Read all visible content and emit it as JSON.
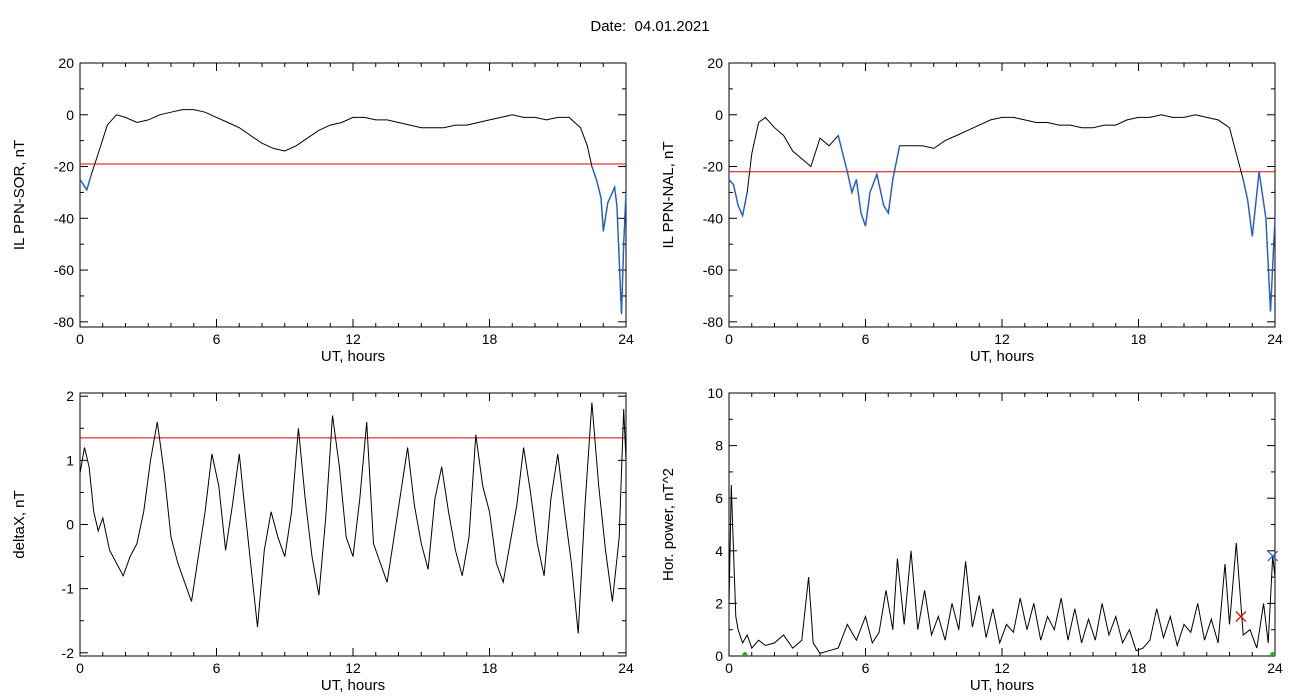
{
  "header": {
    "title": "Date:  04.01.2021"
  },
  "colors": {
    "curve": "#000000",
    "substorm_curve": "#1e5fcc",
    "threshold": "#dd0000"
  },
  "chart_data": [
    {
      "type": "line",
      "xlabel": "UT, hours",
      "ylabel": "IL PPN-SOR, nT",
      "xlim": [
        0,
        24
      ],
      "ylim": [
        -82,
        20
      ],
      "xticks": [
        "0",
        "6",
        "12",
        "18",
        "24"
      ],
      "yticks": [
        "20",
        "0",
        "-20",
        "-40",
        "-60",
        "-80"
      ],
      "threshold": -19,
      "series": [
        {
          "x": [
            0,
            0.3,
            0.5,
            0.8,
            1.2,
            1.6,
            2.0,
            2.5,
            3.0,
            3.5,
            4.0,
            4.5,
            5.0,
            5.5,
            6.0,
            6.5,
            7.0,
            7.5,
            8.0,
            8.5,
            9.0,
            9.5,
            10.0,
            10.5,
            11.0,
            11.5,
            12.0,
            12.5,
            13.0,
            13.5,
            14.0,
            14.5,
            15.0,
            15.5,
            16.0,
            16.5,
            17.0,
            17.5,
            18.0,
            18.5,
            19.0,
            19.5,
            20.0,
            20.5,
            21.0,
            21.5,
            22.0,
            22.3,
            22.5,
            22.7,
            22.9,
            23.0,
            23.2,
            23.4,
            23.5,
            23.6,
            23.8,
            23.9,
            24.0
          ],
          "y": [
            -25,
            -29,
            -23,
            -15,
            -4,
            0,
            -1,
            -3,
            -2,
            0,
            1,
            2,
            2,
            1,
            -1,
            -3,
            -5,
            -8,
            -11,
            -13,
            -14,
            -12,
            -9,
            -6,
            -4,
            -3,
            -1,
            -1,
            -2,
            -2,
            -3,
            -4,
            -5,
            -5,
            -5,
            -4,
            -4,
            -3,
            -2,
            -1,
            0,
            -1,
            -1,
            -2,
            -1,
            -1,
            -5,
            -12,
            -20,
            -25,
            -32,
            -45,
            -34,
            -30,
            -28,
            -35,
            -77,
            -50,
            -30
          ],
          "substorm_ranges": [
            [
              0,
              0.5
            ],
            [
              22.5,
              24
            ]
          ]
        }
      ]
    },
    {
      "type": "line",
      "xlabel": "UT, hours",
      "ylabel": "IL PPN-NAL, nT",
      "xlim": [
        0,
        24
      ],
      "ylim": [
        -82,
        20
      ],
      "xticks": [
        "0",
        "6",
        "12",
        "18",
        "24"
      ],
      "yticks": [
        "20",
        "0",
        "-20",
        "-40",
        "-60",
        "-80"
      ],
      "threshold": -22,
      "series": [
        {
          "x": [
            0,
            0.2,
            0.4,
            0.6,
            0.8,
            1.0,
            1.3,
            1.6,
            2.0,
            2.4,
            2.8,
            3.2,
            3.6,
            4.0,
            4.4,
            4.8,
            5.2,
            5.4,
            5.6,
            5.8,
            6.0,
            6.2,
            6.5,
            6.8,
            7.0,
            7.2,
            7.5,
            8.0,
            8.5,
            9.0,
            9.5,
            10.0,
            10.5,
            11.0,
            11.5,
            12.0,
            12.5,
            13.0,
            13.5,
            14.0,
            14.5,
            15.0,
            15.5,
            16.0,
            16.5,
            17.0,
            17.5,
            18.0,
            18.5,
            19.0,
            19.5,
            20.0,
            20.5,
            21.0,
            21.5,
            22.0,
            22.3,
            22.6,
            22.8,
            23.0,
            23.3,
            23.6,
            23.8,
            24.0
          ],
          "y": [
            -25,
            -27,
            -35,
            -39,
            -30,
            -15,
            -3,
            -1,
            -5,
            -8,
            -14,
            -17,
            -20,
            -9,
            -12,
            -8,
            -22,
            -30,
            -25,
            -38,
            -43,
            -30,
            -23,
            -35,
            -38,
            -25,
            -12,
            -12,
            -12,
            -13,
            -10,
            -8,
            -6,
            -4,
            -2,
            -1,
            -1,
            -2,
            -3,
            -3,
            -4,
            -4,
            -5,
            -5,
            -4,
            -4,
            -2,
            -1,
            -1,
            0,
            -1,
            -1,
            0,
            -1,
            -2,
            -5,
            -15,
            -25,
            -33,
            -47,
            -22,
            -40,
            -76,
            -40
          ],
          "substorm_ranges": [
            [
              0,
              0.9
            ],
            [
              4.5,
              7.6
            ],
            [
              22.4,
              24
            ]
          ]
        }
      ]
    },
    {
      "type": "line",
      "xlabel": "UT, hours",
      "ylabel": "deltaX, nT",
      "xlim": [
        0,
        24
      ],
      "ylim": [
        -2.05,
        2.05
      ],
      "xticks": [
        "0",
        "6",
        "12",
        "18",
        "24"
      ],
      "yticks": [
        "2",
        "1",
        "0",
        "-1",
        "-2"
      ],
      "threshold": 1.35,
      "series": [
        {
          "x": [
            0,
            0.2,
            0.4,
            0.6,
            0.8,
            1.0,
            1.3,
            1.6,
            1.9,
            2.2,
            2.5,
            2.8,
            3.1,
            3.4,
            3.7,
            4.0,
            4.3,
            4.6,
            4.9,
            5.2,
            5.5,
            5.8,
            6.1,
            6.4,
            6.7,
            7.0,
            7.2,
            7.5,
            7.8,
            8.1,
            8.4,
            8.7,
            9.0,
            9.3,
            9.6,
            9.9,
            10.2,
            10.5,
            10.8,
            11.1,
            11.4,
            11.7,
            12.0,
            12.3,
            12.6,
            12.9,
            13.2,
            13.5,
            13.8,
            14.1,
            14.4,
            14.7,
            15.0,
            15.3,
            15.6,
            15.9,
            16.2,
            16.5,
            16.8,
            17.1,
            17.4,
            17.7,
            18.0,
            18.3,
            18.6,
            18.9,
            19.2,
            19.5,
            19.8,
            20.1,
            20.4,
            20.7,
            21.0,
            21.3,
            21.6,
            21.9,
            22.2,
            22.5,
            22.8,
            23.1,
            23.4,
            23.7,
            23.9,
            24.0
          ],
          "y": [
            0.8,
            1.2,
            0.9,
            0.2,
            -0.1,
            0.1,
            -0.4,
            -0.6,
            -0.8,
            -0.5,
            -0.3,
            0.2,
            1.0,
            1.6,
            0.8,
            -0.2,
            -0.6,
            -0.9,
            -1.2,
            -0.5,
            0.2,
            1.1,
            0.6,
            -0.4,
            0.3,
            1.1,
            0.4,
            -0.6,
            -1.6,
            -0.4,
            0.2,
            -0.2,
            -0.5,
            0.2,
            1.5,
            0.4,
            -0.5,
            -1.1,
            0.1,
            1.7,
            0.9,
            -0.2,
            -0.5,
            0.4,
            1.6,
            -0.3,
            -0.6,
            -0.9,
            -0.2,
            0.5,
            1.2,
            0.3,
            -0.3,
            -0.7,
            0.4,
            0.9,
            0.2,
            -0.4,
            -0.8,
            -0.2,
            1.4,
            0.6,
            0.2,
            -0.6,
            -0.9,
            -0.3,
            0.3,
            1.2,
            0.5,
            -0.3,
            -0.8,
            0.4,
            1.1,
            0.2,
            -0.6,
            -1.7,
            0.3,
            1.9,
            0.6,
            -0.4,
            -1.2,
            -0.2,
            1.8,
            1.0
          ],
          "substorm_ranges": []
        }
      ]
    },
    {
      "type": "line",
      "xlabel": "UT, hours",
      "ylabel": "Hor. power, nT^2",
      "xlim": [
        0,
        24
      ],
      "ylim": [
        0,
        10
      ],
      "xticks": [
        "0",
        "6",
        "12",
        "18",
        "24"
      ],
      "yticks": [
        "10",
        "8",
        "6",
        "4",
        "2",
        "0"
      ],
      "threshold": null,
      "series": [
        {
          "x": [
            0,
            0.1,
            0.2,
            0.3,
            0.4,
            0.6,
            0.8,
            1.0,
            1.3,
            1.6,
            2.0,
            2.4,
            2.8,
            3.2,
            3.5,
            3.7,
            4.0,
            4.4,
            4.8,
            5.2,
            5.6,
            6.0,
            6.3,
            6.6,
            6.9,
            7.2,
            7.4,
            7.7,
            8.0,
            8.3,
            8.6,
            8.9,
            9.2,
            9.5,
            9.8,
            10.1,
            10.4,
            10.7,
            11.0,
            11.3,
            11.6,
            11.9,
            12.2,
            12.5,
            12.8,
            13.1,
            13.4,
            13.7,
            14.0,
            14.3,
            14.6,
            14.9,
            15.2,
            15.5,
            15.8,
            16.1,
            16.4,
            16.7,
            17.0,
            17.3,
            17.6,
            17.9,
            18.2,
            18.5,
            18.8,
            19.1,
            19.4,
            19.7,
            20.0,
            20.3,
            20.6,
            20.9,
            21.2,
            21.5,
            21.8,
            22.0,
            22.3,
            22.6,
            22.9,
            23.2,
            23.5,
            23.7,
            23.9,
            24.0
          ],
          "y": [
            2.0,
            6.5,
            4.0,
            1.5,
            1.0,
            0.5,
            0.8,
            0.3,
            0.6,
            0.4,
            0.5,
            0.8,
            0.3,
            0.6,
            3.0,
            0.5,
            0.1,
            0.2,
            0.3,
            1.2,
            0.6,
            1.5,
            0.5,
            0.9,
            2.5,
            1.0,
            3.7,
            1.2,
            4.0,
            1.0,
            2.5,
            0.8,
            1.5,
            0.6,
            2.0,
            1.0,
            3.6,
            1.1,
            2.3,
            0.7,
            1.8,
            0.5,
            1.2,
            0.9,
            2.2,
            1.0,
            2.0,
            0.6,
            1.5,
            1.0,
            2.2,
            0.6,
            1.8,
            0.5,
            1.4,
            0.6,
            2.0,
            0.8,
            1.5,
            0.5,
            1.0,
            0.2,
            0.3,
            0.6,
            1.8,
            0.7,
            1.5,
            0.4,
            1.2,
            0.9,
            2.0,
            0.6,
            1.4,
            0.5,
            3.5,
            1.2,
            4.3,
            0.8,
            1.0,
            0.3,
            2.0,
            0.5,
            3.8,
            3.0
          ],
          "substorm_ranges": []
        }
      ],
      "markers": [
        {
          "symbol": "x",
          "color": "#cc0000",
          "x": 22.5,
          "y": 1.5
        },
        {
          "symbol": "x",
          "color": "#2a5fcc",
          "x": 23.9,
          "y": 3.8
        },
        {
          "symbol": "dot",
          "color": "#22aa22",
          "x": 0.7,
          "y": 0.05
        },
        {
          "symbol": "dot",
          "color": "#22aa22",
          "x": 23.9,
          "y": 0.05
        }
      ]
    }
  ]
}
